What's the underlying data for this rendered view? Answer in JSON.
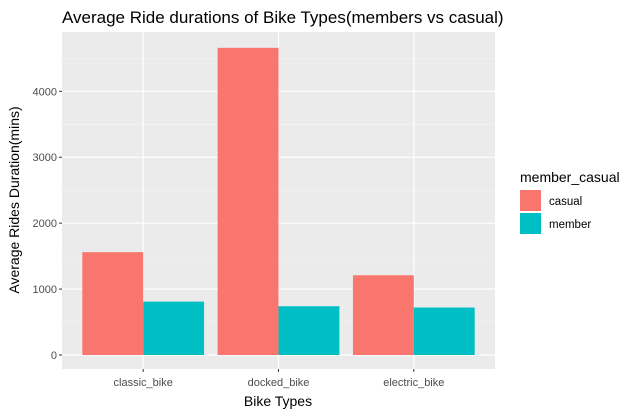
{
  "chart_data": {
    "type": "bar",
    "title": "Average Ride durations of Bike Types(members vs casual)",
    "xlabel": "Bike Types",
    "ylabel": "Average Rides Duration(mins)",
    "categories": [
      "classic_bike",
      "docked_bike",
      "electric_bike"
    ],
    "series": [
      {
        "name": "casual",
        "color": "#F8766D",
        "values": [
          1560,
          4660,
          1210
        ]
      },
      {
        "name": "member",
        "color": "#00BFC4",
        "values": [
          810,
          740,
          720
        ]
      }
    ],
    "ylim": [
      0,
      4900
    ],
    "yticks": [
      0,
      1000,
      2000,
      3000,
      4000
    ],
    "grid": true,
    "legend": {
      "title": "member_casual",
      "placement": "right"
    }
  }
}
